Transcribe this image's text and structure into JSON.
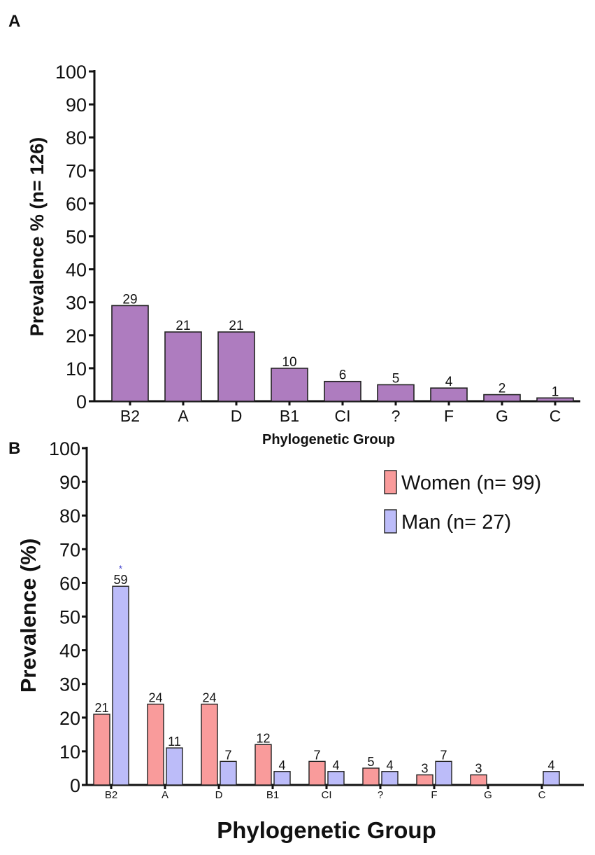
{
  "chart_data": [
    {
      "panel": "A",
      "type": "bar",
      "title": "",
      "xlabel": "Phylogenetic  Group",
      "ylabel": "Prevalence % (n= 126)",
      "ylim": [
        0,
        100
      ],
      "yticks": [
        0,
        10,
        20,
        30,
        40,
        50,
        60,
        70,
        80,
        90,
        100
      ],
      "categories": [
        "B2",
        "A",
        "D",
        "B1",
        "CI",
        "?",
        "F",
        "G",
        "C"
      ],
      "values": [
        29,
        21,
        21,
        10,
        6,
        5,
        4,
        2,
        1
      ],
      "color": "#ae7cbf"
    },
    {
      "panel": "B",
      "type": "bar",
      "title": "",
      "xlabel": "Phylogenetic  Group",
      "ylabel": "Prevalence (%)",
      "ylim": [
        0,
        100
      ],
      "yticks": [
        0,
        10,
        20,
        30,
        40,
        50,
        60,
        70,
        80,
        90,
        100
      ],
      "categories": [
        "B2",
        "A",
        "D",
        "B1",
        "CI",
        "?",
        "F",
        "G",
        "C"
      ],
      "series": [
        {
          "name": "Women (n= 99)",
          "color": "#f99b9b",
          "values": [
            21,
            24,
            24,
            12,
            7,
            5,
            3,
            3,
            null
          ]
        },
        {
          "name": "Man (n= 27)",
          "color": "#bcbcf9",
          "values": [
            59,
            11,
            7,
            4,
            4,
            4,
            7,
            null,
            4
          ]
        }
      ],
      "annotations": [
        {
          "category": "B2",
          "series": "Man (n= 27)",
          "text": "*",
          "color": "#4a4ad0"
        }
      ],
      "legend": "top-right"
    }
  ]
}
